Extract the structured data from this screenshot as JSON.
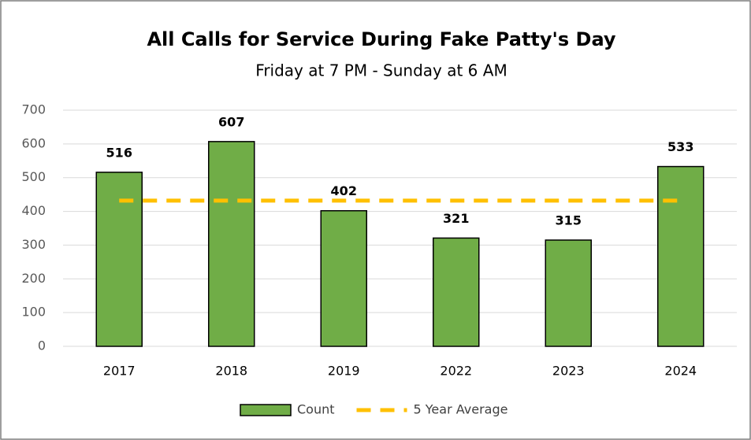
{
  "chart_data": {
    "type": "bar",
    "title": "All Calls for Service During Fake Patty's Day",
    "subtitle": "Friday at 7 PM - Sunday at 6 AM",
    "categories": [
      "2017",
      "2018",
      "2019",
      "2022",
      "2023",
      "2024"
    ],
    "series": [
      {
        "name": "Count",
        "type": "bar",
        "color": "#70ad47",
        "values": [
          516,
          607,
          402,
          321,
          315,
          533
        ]
      },
      {
        "name": "5 Year Average",
        "type": "line",
        "color": "#ffc000",
        "values": [
          432,
          432,
          432,
          432,
          432,
          432
        ]
      }
    ],
    "ylim": [
      0,
      700
    ],
    "yticks": [
      0,
      100,
      200,
      300,
      400,
      500,
      600,
      700
    ],
    "grid": true,
    "legend": "bottom"
  }
}
